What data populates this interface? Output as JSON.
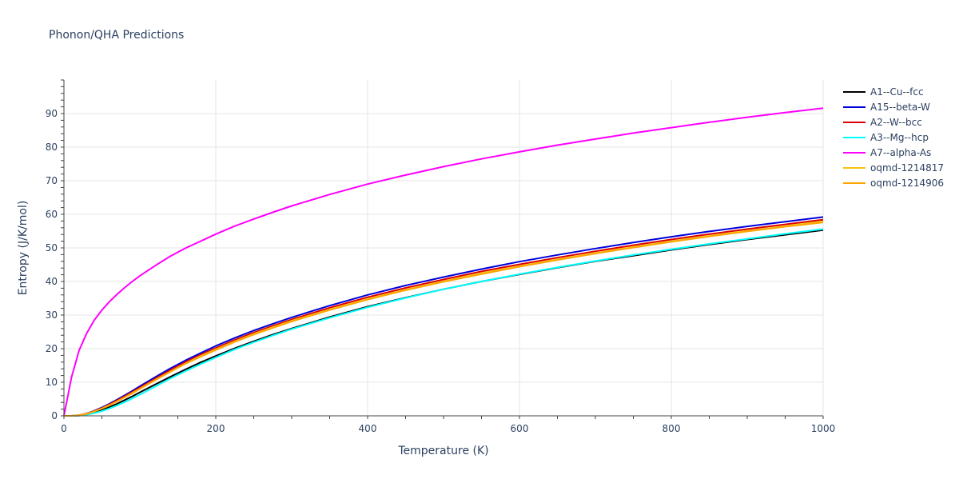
{
  "chart_data": {
    "type": "line",
    "title": "Phonon/QHA Predictions",
    "xlabel": "Temperature (K)",
    "ylabel": "Entropy (J/K/mol)",
    "xlim": [
      0,
      1000
    ],
    "ylim": [
      0,
      100
    ],
    "x_ticks": [
      0,
      200,
      400,
      600,
      800,
      1000
    ],
    "y_ticks": [
      0,
      10,
      20,
      30,
      40,
      50,
      60,
      70,
      80,
      90
    ],
    "grid": true,
    "legend_position": "right",
    "x": [
      0,
      10,
      20,
      30,
      40,
      50,
      60,
      70,
      80,
      90,
      100,
      120,
      140,
      160,
      180,
      200,
      225,
      250,
      275,
      300,
      350,
      400,
      450,
      500,
      550,
      600,
      650,
      700,
      750,
      800,
      850,
      900,
      950,
      1000
    ],
    "series": [
      {
        "name": "A1--Cu--fcc",
        "color": "#000000",
        "values": [
          0,
          0,
          0.1,
          0.4,
          1.0,
          1.7,
          2.6,
          3.6,
          4.7,
          5.8,
          7.0,
          9.3,
          11.6,
          13.8,
          15.9,
          17.8,
          20.1,
          22.2,
          24.2,
          26.0,
          29.4,
          32.5,
          35.2,
          37.7,
          40.0,
          42.1,
          44.1,
          46.0,
          47.7,
          49.4,
          51.0,
          52.5,
          53.9,
          55.3
        ]
      },
      {
        "name": "A15--beta-W",
        "color": "#0000dd",
        "values": [
          0,
          0,
          0.2,
          0.7,
          1.5,
          2.5,
          3.6,
          4.8,
          6.1,
          7.4,
          8.8,
          11.5,
          14.1,
          16.5,
          18.7,
          20.8,
          23.2,
          25.4,
          27.4,
          29.3,
          32.8,
          36.0,
          38.8,
          41.3,
          43.7,
          45.9,
          47.9,
          49.8,
          51.6,
          53.3,
          54.9,
          56.4,
          57.8,
          59.2
        ]
      },
      {
        "name": "A2--W--bcc",
        "color": "#dd0000",
        "values": [
          0,
          0,
          0.2,
          0.6,
          1.4,
          2.3,
          3.4,
          4.6,
          5.8,
          7.1,
          8.4,
          11.0,
          13.6,
          16.0,
          18.2,
          20.2,
          22.6,
          24.8,
          26.8,
          28.7,
          32.2,
          35.3,
          38.1,
          40.6,
          43.0,
          45.1,
          47.1,
          49.0,
          50.8,
          52.5,
          54.1,
          55.6,
          57.0,
          58.4
        ]
      },
      {
        "name": "A3--Mg--hcp",
        "color": "#00ffff",
        "values": [
          0,
          0,
          0.1,
          0.3,
          0.8,
          1.4,
          2.2,
          3.1,
          4.1,
          5.2,
          6.3,
          8.7,
          11.1,
          13.3,
          15.4,
          17.4,
          19.8,
          21.9,
          23.9,
          25.8,
          29.2,
          32.3,
          35.1,
          37.7,
          40.0,
          42.2,
          44.2,
          46.1,
          47.9,
          49.6,
          51.2,
          52.7,
          54.2,
          55.6
        ]
      },
      {
        "name": "A7--alpha-As",
        "color": "#ff00ff",
        "values": [
          0,
          11.5,
          19.5,
          24.6,
          28.5,
          31.5,
          34.0,
          36.2,
          38.2,
          40.0,
          41.7,
          44.7,
          47.5,
          49.9,
          52.0,
          54.1,
          56.5,
          58.6,
          60.6,
          62.5,
          65.9,
          69.0,
          71.7,
          74.2,
          76.5,
          78.6,
          80.6,
          82.4,
          84.2,
          85.8,
          87.4,
          88.9,
          90.3,
          91.6
        ]
      },
      {
        "name": "oqmd-1214817",
        "color": "#f5c211",
        "values": [
          0,
          0,
          0.2,
          0.6,
          1.3,
          2.2,
          3.2,
          4.3,
          5.5,
          6.8,
          8.1,
          10.7,
          13.2,
          15.6,
          17.8,
          19.8,
          22.2,
          24.4,
          26.4,
          28.3,
          31.7,
          34.8,
          37.6,
          40.1,
          42.5,
          44.6,
          46.6,
          48.5,
          50.3,
          52.0,
          53.6,
          55.1,
          56.5,
          57.9
        ]
      },
      {
        "name": "oqmd-1214906",
        "color": "#ffa500",
        "values": [
          0,
          0,
          0.2,
          0.6,
          1.3,
          2.2,
          3.2,
          4.3,
          5.5,
          6.7,
          8.0,
          10.6,
          13.1,
          15.5,
          17.6,
          19.6,
          22.0,
          24.2,
          26.2,
          28.1,
          31.5,
          34.6,
          37.4,
          39.9,
          42.2,
          44.4,
          46.4,
          48.3,
          50.1,
          51.8,
          53.4,
          54.9,
          56.3,
          57.6
        ]
      }
    ]
  }
}
